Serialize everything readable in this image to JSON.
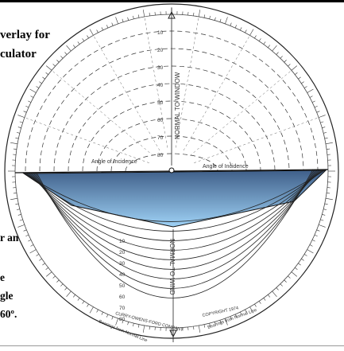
{
  "background_text": {
    "line1": "verlay for",
    "line2": "culator",
    "line3": "r an",
    "line4": "e",
    "line5": "gle",
    "line6": "60º."
  },
  "protractor": {
    "top_axis_label": "NORMAL TO WINDOW",
    "bottom_axis_label": "NORMAL TO WIND",
    "incidence_left": "Angle of Incidence",
    "incidence_right": "Angle of Incidence",
    "maker_left": "CURRY-OWENS-FORD COMPANY",
    "maker_right": "COPYRIGHT 1974",
    "bearing_left": "Bearings from Normal Line",
    "bearing_right": "Bearings from Normal Line",
    "top_scale": [
      "10",
      "20",
      "30",
      "40",
      "50",
      "60",
      "70",
      "80"
    ],
    "bottom_scale": [
      "10",
      "20",
      "30",
      "40",
      "50",
      "60",
      "70",
      "80"
    ]
  },
  "colors": {
    "shadow_top": "#3f5f89",
    "shadow_bottom": "#9fd2f6",
    "line": "#222222"
  }
}
